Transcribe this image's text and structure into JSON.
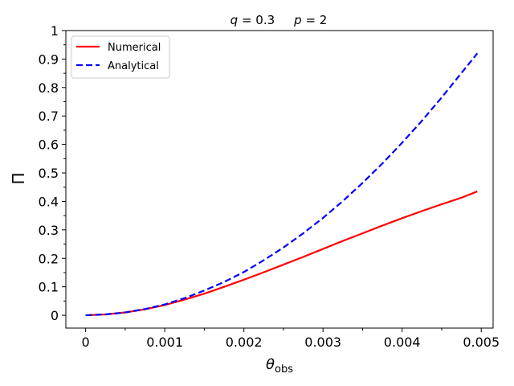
{
  "chart_data": {
    "type": "line",
    "title_parts": [
      {
        "italic": "q",
        "rest": " = 0.3"
      },
      {
        "italic": "p",
        "rest": " = 2"
      }
    ],
    "xlabel_symbol": "θ",
    "xlabel_sub": "obs",
    "ylabel": "Π",
    "xlim": [
      -0.00025,
      0.00515
    ],
    "ylim": [
      -0.045,
      1.0
    ],
    "xticks": [
      0,
      0.001,
      0.002,
      0.003,
      0.004,
      0.005
    ],
    "xtick_labels": [
      "0",
      "0.001",
      "0.002",
      "0.003",
      "0.004",
      "0.005"
    ],
    "xminor": [
      0.0005,
      0.0015,
      0.0025,
      0.0035,
      0.0045
    ],
    "yticks": [
      0,
      0.1,
      0.2,
      0.3,
      0.4,
      0.5,
      0.6,
      0.7,
      0.8,
      0.9,
      1.0
    ],
    "ytick_labels": [
      "0",
      "0.1",
      "0.2",
      "0.3",
      "0.4",
      "0.5",
      "0.6",
      "0.7",
      "0.8",
      "0.9",
      "1"
    ],
    "yminor": [
      0.05,
      0.15,
      0.25,
      0.35,
      0.45,
      0.55,
      0.65,
      0.75,
      0.85,
      0.95
    ],
    "legend_position": "top-left",
    "series": [
      {
        "name": "Numerical",
        "color": "#ff0000",
        "style": "solid",
        "x": [
          0,
          0.00025,
          0.0005,
          0.00075,
          0.001,
          0.00125,
          0.0015,
          0.00175,
          0.002,
          0.00225,
          0.0025,
          0.00275,
          0.003,
          0.00325,
          0.0035,
          0.00375,
          0.004,
          0.00425,
          0.0045,
          0.00475,
          0.00495
        ],
        "y": [
          0,
          0.003,
          0.01,
          0.021,
          0.036,
          0.055,
          0.076,
          0.1,
          0.125,
          0.151,
          0.178,
          0.205,
          0.233,
          0.261,
          0.288,
          0.315,
          0.341,
          0.366,
          0.39,
          0.413,
          0.435
        ]
      },
      {
        "name": "Analytical",
        "color": "#0000ff",
        "style": "dashed",
        "x": [
          0,
          0.00025,
          0.0005,
          0.00075,
          0.001,
          0.00125,
          0.0015,
          0.00175,
          0.002,
          0.00225,
          0.0025,
          0.00275,
          0.003,
          0.00325,
          0.0035,
          0.00375,
          0.004,
          0.00425,
          0.0045,
          0.00475,
          0.00495
        ],
        "y": [
          0,
          0.003,
          0.01,
          0.022,
          0.038,
          0.06,
          0.087,
          0.117,
          0.152,
          0.193,
          0.238,
          0.288,
          0.342,
          0.401,
          0.465,
          0.533,
          0.606,
          0.683,
          0.765,
          0.851,
          0.92
        ]
      }
    ]
  }
}
